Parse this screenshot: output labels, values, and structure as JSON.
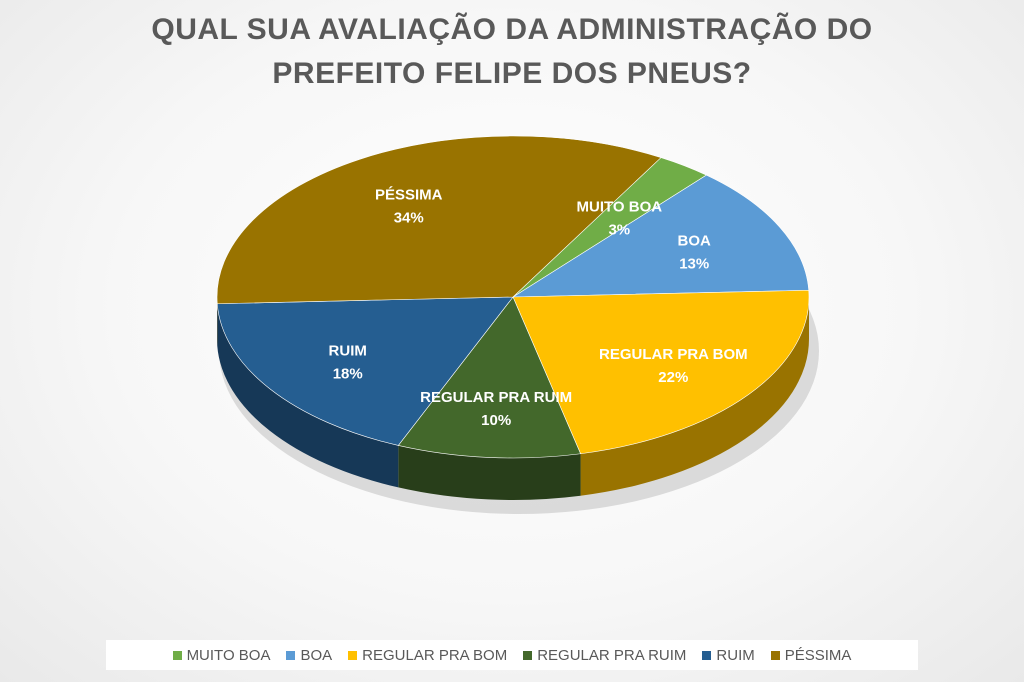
{
  "title_lines": [
    "QUAL SUA AVALIAÇÃO DA ADMINISTRAÇÃO DO",
    "PREFEITO FELIPE DOS PNEUS?"
  ],
  "chart_data": {
    "type": "pie",
    "title": "QUAL SUA AVALIAÇÃO DA ADMINISTRAÇÃO DO PREFEITO FELIPE DOS PNEUS?",
    "legend_position": "bottom",
    "slices": [
      {
        "label": "MUITO BOA",
        "value": 3,
        "value_label": "3%",
        "color": "#70AD47"
      },
      {
        "label": "BOA",
        "value": 13,
        "value_label": "13%",
        "color": "#5B9BD5"
      },
      {
        "label": "REGULAR PRA BOM",
        "value": 22,
        "value_label": "22%",
        "color": "#FFC000"
      },
      {
        "label": "REGULAR PRA RUIM",
        "value": 10,
        "value_label": "10%",
        "color": "#43682B"
      },
      {
        "label": "RUIM",
        "value": 18,
        "value_label": "18%",
        "color": "#255E91"
      },
      {
        "label": "PÉSSIMA",
        "value": 34,
        "value_label": "34%",
        "color": "#997300"
      }
    ]
  }
}
